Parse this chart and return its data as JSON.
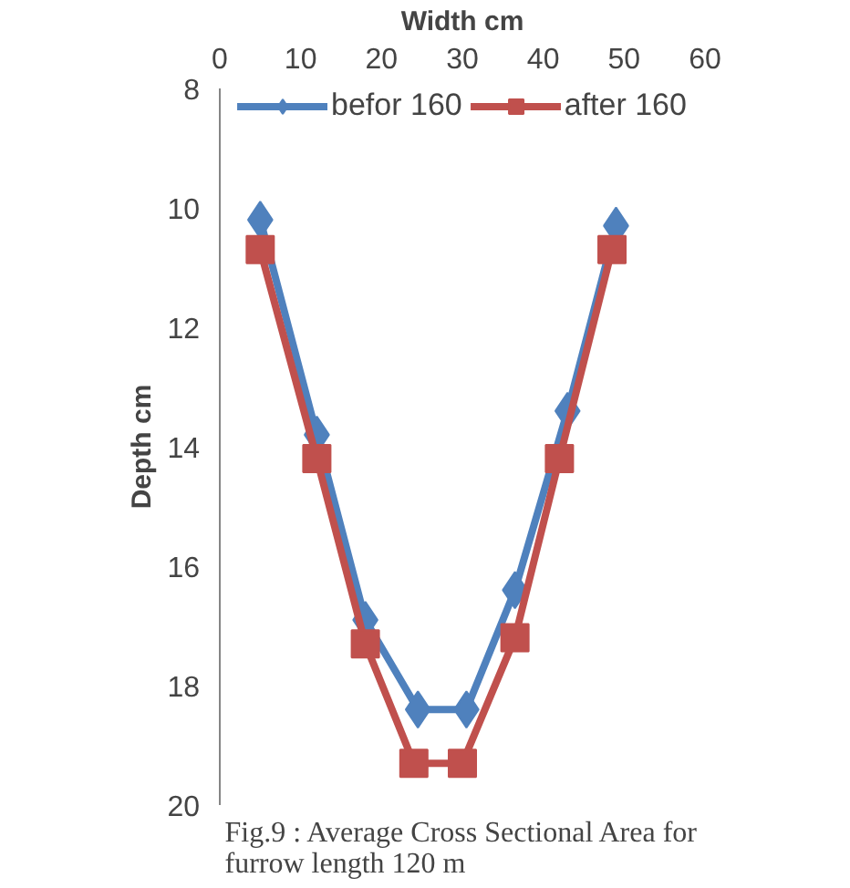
{
  "chart_data": {
    "type": "line",
    "xlabel": "Width cm",
    "ylabel": "Depth cm",
    "xlim": [
      0,
      60
    ],
    "xticks": [
      0,
      10,
      20,
      30,
      40,
      50,
      60
    ],
    "ylim": [
      20,
      8
    ],
    "yticks": [
      8,
      10,
      12,
      14,
      16,
      18,
      20
    ],
    "grid": false,
    "legend": "top",
    "line_style": "solid",
    "series": [
      {
        "name": "befor 160",
        "color": "#4f81bd",
        "marker": "diamond",
        "x": [
          5,
          12,
          18,
          24.5,
          30.5,
          36.5,
          43,
          49
        ],
        "values": [
          10.2,
          13.8,
          16.9,
          18.4,
          18.4,
          16.4,
          13.4,
          10.3
        ]
      },
      {
        "name": "after 160",
        "color": "#c0504d",
        "marker": "square",
        "x": [
          5,
          12,
          18,
          24,
          30,
          36.5,
          42,
          48.5
        ],
        "values": [
          10.7,
          14.2,
          17.3,
          19.3,
          19.3,
          17.2,
          14.2,
          10.7
        ]
      }
    ],
    "annotations": [
      "Fig.9 : Average Cross Sectional Area for\nfurrow length 120 m"
    ]
  }
}
